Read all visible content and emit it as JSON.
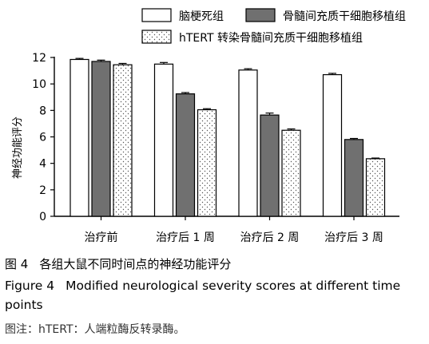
{
  "chart_data": {
    "type": "bar",
    "categories": [
      "治疗前",
      "治疗后 1 周",
      "治疗后 2 周",
      "治疗后 3 周"
    ],
    "series": [
      {
        "name": "脑梗死组",
        "values": [
          11.85,
          11.5,
          11.05,
          10.7
        ],
        "errors": [
          0.08,
          0.12,
          0.1,
          0.1
        ],
        "fill": "#ffffff",
        "pattern": "none"
      },
      {
        "name": "骨髓间充质干细胞移植组",
        "values": [
          11.7,
          9.25,
          7.65,
          5.8
        ],
        "errors": [
          0.1,
          0.1,
          0.15,
          0.08
        ],
        "fill": "#707070",
        "pattern": "none"
      },
      {
        "name": "hTERT 转染骨髓间充质干细胞移植组",
        "values": [
          11.45,
          8.05,
          6.5,
          4.35
        ],
        "errors": [
          0.1,
          0.08,
          0.1,
          0.05
        ],
        "fill": "#ffffff",
        "pattern": "dots"
      }
    ],
    "ylabel": "神经功能评分",
    "ylim": [
      0,
      12
    ],
    "yticks": [
      0,
      2,
      4,
      6,
      8,
      10,
      12
    ],
    "legend_position": "top",
    "grid": false
  },
  "captions": {
    "figure_label_zh": "图 4",
    "title_zh": "各组大鼠不同时间点的神经功能评分",
    "figure_label_en": "Figure 4",
    "title_en": "Modified neurological severity scores at different time points",
    "note": "图注：hTERT：人端粒酶反转录酶。"
  }
}
